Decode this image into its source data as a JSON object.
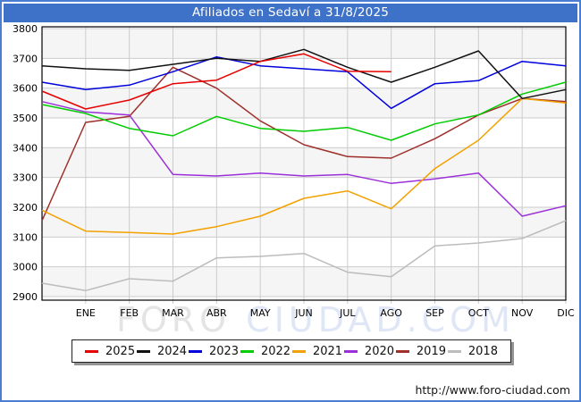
{
  "title": {
    "text": "Afiliados en Sedaví a 31/8/2025",
    "bg_color": "#3e72c8",
    "text_color": "#ffffff"
  },
  "frame": {
    "border_color": "#4b7ed3"
  },
  "watermark": {
    "part1": "FORO",
    "part2": "CIUDAD.COM"
  },
  "footer": {
    "url": "http://www.foro-ciudad.com"
  },
  "colors": {
    "gridline": "#cccccc",
    "plot_border": "#000000",
    "band_fill": "#f5f5f5",
    "axis_label": "#000000",
    "watermark_part1": "#e4e4e4",
    "watermark_part2": "#dfe6f6"
  },
  "chart_data": {
    "type": "line",
    "title": "Afiliados en Sedaví a 31/8/2025",
    "xlabel": "",
    "ylabel": "",
    "x_categories": [
      "ENE",
      "FEB",
      "MAR",
      "ABR",
      "MAY",
      "JUN",
      "JUL",
      "AGO",
      "SEP",
      "OCT",
      "NOV",
      "DIC"
    ],
    "y_axis": {
      "min": 2900,
      "max": 3800,
      "step": 100
    },
    "y_ticks": [
      3800,
      3700,
      3600,
      3500,
      3400,
      3300,
      3200,
      3100,
      3000,
      2900
    ],
    "grid": true,
    "legend_position": "bottom",
    "lead_note": "first value of each series is plotted at the left axis edge before ENE; 2025 series ends at AGO",
    "series": [
      {
        "name": "2025",
        "color": "#e60000",
        "values": [
          3590,
          3530,
          3560,
          3615,
          3627,
          3690,
          3715,
          3657,
          3655,
          null,
          null,
          null,
          null
        ]
      },
      {
        "name": "2024",
        "color": "#111111",
        "values": [
          3675,
          3665,
          3660,
          3680,
          3700,
          3690,
          3730,
          3670,
          3620,
          3670,
          3725,
          3565,
          3595
        ]
      },
      {
        "name": "2023",
        "color": "#0000dd",
        "values": [
          3620,
          3595,
          3610,
          3655,
          3705,
          3675,
          3665,
          3655,
          3532,
          3615,
          3625,
          3690,
          3675
        ]
      },
      {
        "name": "2022",
        "color": "#00cc00",
        "values": [
          3545,
          3515,
          3465,
          3440,
          3505,
          3465,
          3455,
          3468,
          3425,
          3480,
          3510,
          3580,
          3620
        ]
      },
      {
        "name": "2021",
        "color": "#f2a100",
        "values": [
          3190,
          3120,
          3115,
          3110,
          3135,
          3170,
          3230,
          3255,
          3195,
          3330,
          3425,
          3565,
          3550
        ]
      },
      {
        "name": "2020",
        "color": "#9b30d9",
        "values": [
          3555,
          3520,
          3510,
          3310,
          3305,
          3315,
          3305,
          3310,
          3280,
          3295,
          3315,
          3170,
          3205
        ]
      },
      {
        "name": "2019",
        "color": "#9e2f2a",
        "values": [
          3155,
          3485,
          3505,
          3670,
          3600,
          3490,
          3410,
          3370,
          3365,
          3430,
          3510,
          3565,
          3555
        ]
      },
      {
        "name": "2018",
        "color": "#bcbcbc",
        "values": [
          2945,
          2920,
          2960,
          2952,
          3030,
          3035,
          3045,
          2982,
          2967,
          3070,
          3080,
          3095,
          3155
        ]
      }
    ]
  }
}
